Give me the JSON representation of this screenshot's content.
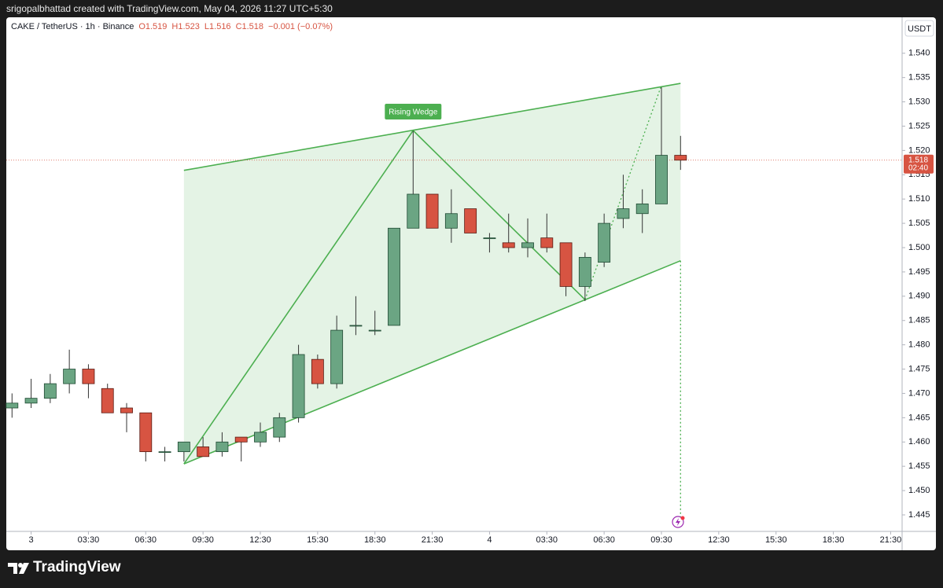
{
  "header": {
    "title": "srigopalbhattad created with TradingView.com, May 04, 2026 11:27 UTC+5:30"
  },
  "footer": {
    "brand": "TradingView"
  },
  "chart_data": {
    "type": "candlestick",
    "symbol": "CAKE / TetherUS · 1h · Binance",
    "ohlc_labels": [
      "O1.519",
      "H1.523",
      "L1.516",
      "C1.518",
      "−0.001 (−0.07%)"
    ],
    "currency": "USDT",
    "x": [
      0,
      1,
      2,
      3,
      4,
      5,
      6,
      7,
      8,
      9,
      10,
      11,
      12,
      13,
      14,
      15,
      16,
      17,
      18,
      19,
      20,
      21,
      22,
      23,
      24,
      25,
      26,
      27,
      28,
      29,
      30,
      31,
      32,
      33,
      34,
      35
    ],
    "series": [
      {
        "name": "CAKE / TetherUS",
        "up_color": "#6ba583",
        "down_color": "#d75442",
        "open": [
          1.467,
          1.468,
          1.469,
          1.472,
          1.475,
          1.471,
          1.467,
          1.466,
          1.458,
          1.458,
          1.459,
          1.458,
          1.461,
          1.46,
          1.461,
          1.465,
          1.477,
          1.472,
          1.484,
          1.483,
          1.484,
          1.504,
          1.511,
          1.504,
          1.508,
          1.502,
          1.501,
          1.5,
          1.502,
          1.501,
          1.492,
          1.497,
          1.506,
          1.507,
          1.509,
          1.519
        ],
        "high": [
          1.47,
          1.473,
          1.474,
          1.479,
          1.476,
          1.472,
          1.468,
          1.466,
          1.459,
          1.46,
          1.461,
          1.462,
          1.461,
          1.464,
          1.466,
          1.48,
          1.478,
          1.486,
          1.49,
          1.487,
          1.504,
          1.524,
          1.511,
          1.512,
          1.508,
          1.503,
          1.507,
          1.506,
          1.507,
          1.501,
          1.499,
          1.507,
          1.515,
          1.512,
          1.533,
          1.523
        ],
        "low": [
          1.465,
          1.467,
          1.468,
          1.47,
          1.469,
          1.466,
          1.462,
          1.456,
          1.456,
          1.456,
          1.457,
          1.457,
          1.456,
          1.459,
          1.46,
          1.464,
          1.471,
          1.471,
          1.482,
          1.482,
          1.484,
          1.504,
          1.504,
          1.501,
          1.503,
          1.499,
          1.499,
          1.498,
          1.499,
          1.49,
          1.489,
          1.496,
          1.504,
          1.503,
          1.509,
          1.516
        ],
        "close": [
          1.468,
          1.469,
          1.472,
          1.475,
          1.472,
          1.466,
          1.466,
          1.458,
          1.458,
          1.46,
          1.457,
          1.46,
          1.46,
          1.462,
          1.465,
          1.478,
          1.472,
          1.483,
          1.484,
          1.483,
          1.504,
          1.511,
          1.504,
          1.507,
          1.503,
          1.502,
          1.5,
          1.501,
          1.5,
          1.492,
          1.498,
          1.505,
          1.508,
          1.509,
          1.519,
          1.518
        ]
      }
    ],
    "xlim": [
      -0.3,
      46.6
    ],
    "xticks": [
      {
        "value": 1,
        "label": "3"
      },
      {
        "value": 4,
        "label": "03:30"
      },
      {
        "value": 7,
        "label": "06:30"
      },
      {
        "value": 10,
        "label": "09:30"
      },
      {
        "value": 13,
        "label": "12:30"
      },
      {
        "value": 16,
        "label": "15:30"
      },
      {
        "value": 19,
        "label": "18:30"
      },
      {
        "value": 22,
        "label": "21:30"
      },
      {
        "value": 25,
        "label": "4"
      },
      {
        "value": 28,
        "label": "03:30"
      },
      {
        "value": 31,
        "label": "06:30"
      },
      {
        "value": 34,
        "label": "09:30"
      },
      {
        "value": 37,
        "label": "12:30"
      },
      {
        "value": 40,
        "label": "15:30"
      },
      {
        "value": 43,
        "label": "18:30"
      },
      {
        "value": 46,
        "label": "21:30"
      }
    ],
    "ylim": [
      1.4416,
      1.5474
    ],
    "yticks": [
      1.445,
      {
        "value": 1.45,
        "label": "1.450"
      },
      1.455,
      {
        "value": 1.46,
        "label": "1.460"
      },
      1.465,
      {
        "value": 1.47,
        "label": "1.470"
      },
      1.475,
      {
        "value": 1.48,
        "label": "1.480"
      },
      1.485,
      {
        "value": 1.49,
        "label": "1.490"
      },
      1.495,
      {
        "value": 1.5,
        "label": "1.500"
      },
      1.505,
      {
        "value": 1.51,
        "label": "1.510"
      },
      1.515,
      {
        "value": 1.52,
        "label": "1.520"
      },
      1.525,
      {
        "value": 1.53,
        "label": "1.530"
      },
      1.535,
      {
        "value": 1.54,
        "label": "1.540"
      }
    ],
    "current_price": 1.518,
    "countdown": "02:40",
    "wedge": {
      "label": "Rising Wedge",
      "color": "#4caf50",
      "upper": {
        "x": [
          9,
          35
        ],
        "y": [
          1.5159,
          1.5338
        ]
      },
      "lower": {
        "x": [
          9,
          35
        ],
        "y": [
          1.4555,
          1.4973
        ]
      },
      "zigzag": {
        "x": [
          9,
          21,
          30,
          34
        ],
        "y": [
          1.4555,
          1.5241,
          1.4893,
          1.5334
        ]
      },
      "target": {
        "x": [
          35,
          35
        ],
        "y": [
          1.4973,
          1.4446
        ]
      }
    }
  }
}
